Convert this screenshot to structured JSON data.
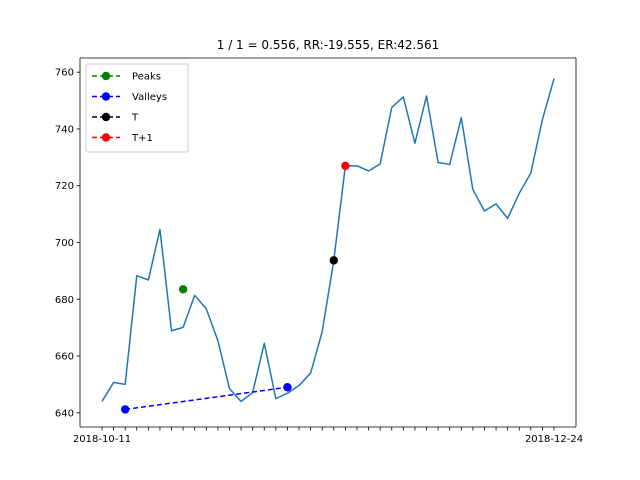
{
  "chart_data": {
    "type": "line",
    "title": "1 / 1 = 0.556, RR:-19.555, ER:42.561",
    "xlabel": "",
    "ylabel": "",
    "ylim": [
      635,
      765
    ],
    "yticks": [
      640,
      660,
      680,
      700,
      720,
      740,
      760
    ],
    "x_first_tick_label": "2018-10-11",
    "x_last_tick_label": "2018-12-24",
    "grid": false,
    "legend_position": "upper-left",
    "series": [
      {
        "color": "#1f77b4",
        "values": [
          644,
          650.7,
          650,
          688.3,
          686.8,
          704.6,
          668.9,
          670.1,
          681.4,
          676.6,
          665.4,
          648.5,
          644,
          647.1,
          664.5,
          645,
          646.9,
          649.6,
          654,
          668.6,
          693.7,
          727,
          727,
          725.2,
          727.7,
          747.6,
          751.3,
          735,
          751.6,
          728.2,
          727.5,
          744,
          718.6,
          711.1,
          713.6,
          708.5,
          717.3,
          724.5,
          743.3,
          757.7
        ]
      }
    ],
    "markers": [
      {
        "name": "Peaks",
        "color": "#008000",
        "index": 7,
        "value": 683.5
      },
      {
        "name": "Valleys",
        "color": "#0000ff",
        "index": 2,
        "value": 641.2
      },
      {
        "name": "Valleys",
        "color": "#0000ff",
        "index": 16,
        "value": 649
      },
      {
        "name": "T",
        "color": "#000000",
        "index": 20,
        "value": 693.7
      },
      {
        "name": "T+1",
        "color": "#ff0000",
        "index": 21,
        "value": 727
      }
    ],
    "legend": [
      {
        "label": "Peaks",
        "color": "#008000",
        "linestyle": "dashed"
      },
      {
        "label": "Valleys",
        "color": "#0000ff",
        "linestyle": "dashed"
      },
      {
        "label": "T",
        "color": "#000000",
        "linestyle": "dashed"
      },
      {
        "label": "T+1",
        "color": "#ff0000",
        "linestyle": "dashed"
      }
    ]
  }
}
